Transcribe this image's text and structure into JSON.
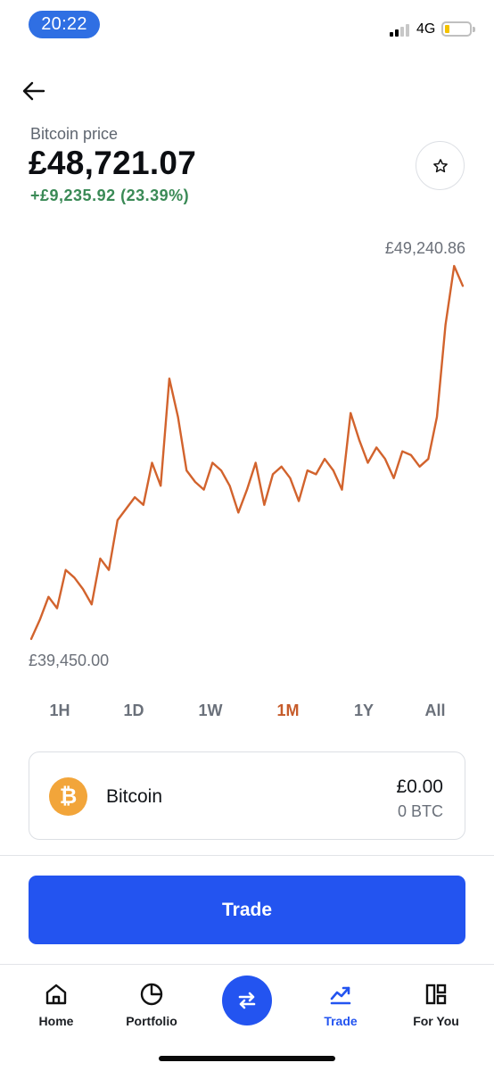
{
  "status_bar": {
    "time": "20:22",
    "network": "4G"
  },
  "header": {
    "price_label": "Bitcoin price",
    "price": "£48,721.07",
    "change": "+£9,235.92 (23.39%)",
    "change_color": "#3a8a56"
  },
  "chart": {
    "high_label": "£49,240.86",
    "low_label": "£39,450.00",
    "line_color": "#d2632d"
  },
  "chart_data": {
    "type": "line",
    "x": [
      0,
      2,
      4,
      6,
      8,
      10,
      12,
      14,
      16,
      18,
      20,
      22,
      24,
      26,
      28,
      30,
      32,
      34,
      36,
      38,
      40,
      42,
      44,
      46,
      48,
      50,
      52,
      54,
      56,
      58,
      60,
      62,
      64,
      66,
      68,
      70,
      72,
      74,
      76,
      78,
      80,
      82,
      84,
      86,
      88,
      90,
      92,
      94,
      96,
      98,
      100
    ],
    "values": [
      39500,
      40000,
      40600,
      40300,
      41300,
      41100,
      40800,
      40400,
      41600,
      41300,
      42600,
      42900,
      43200,
      43000,
      44100,
      43500,
      46300,
      45300,
      43900,
      43600,
      43400,
      44100,
      43900,
      43500,
      42800,
      43400,
      44100,
      43000,
      43800,
      44000,
      43700,
      43100,
      43900,
      43800,
      44200,
      43900,
      43400,
      45400,
      44700,
      44100,
      44500,
      44200,
      43700,
      44400,
      44300,
      44000,
      44200,
      45300,
      47700,
      49240,
      48720
    ],
    "ylim": [
      39450,
      49240.86
    ],
    "xlabel": "",
    "ylabel": ""
  },
  "ranges": {
    "items": [
      {
        "label": "1H"
      },
      {
        "label": "1D"
      },
      {
        "label": "1W"
      },
      {
        "label": "1M"
      },
      {
        "label": "1Y"
      },
      {
        "label": "All"
      }
    ],
    "active_color": "#c65b2a"
  },
  "asset": {
    "logo_glyph": "₿",
    "name": "Bitcoin",
    "fiat_balance": "£0.00",
    "crypto_balance": "0 BTC"
  },
  "actions": {
    "trade_label": "Trade"
  },
  "bottom_nav": {
    "home": "Home",
    "portfolio": "Portfolio",
    "trade": "Trade",
    "for_you": "For You",
    "accent": "#2354f0"
  }
}
